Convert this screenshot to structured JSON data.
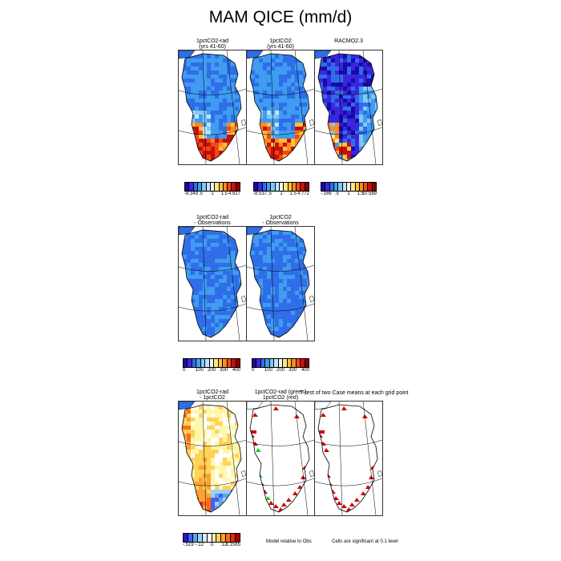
{
  "title": "MAM QICE (mm/d)",
  "rows": [
    {
      "panels": [
        {
          "title1": "1pctCO2-rad",
          "title2": "(yrs 41-60)"
        },
        {
          "title1": "1pctCO2",
          "title2": "(yrs 41-60)"
        },
        {
          "title1": "RACMO2.3",
          "title2": ""
        }
      ],
      "colorbars": [
        {
          "ticks": [
            "-8.349",
            ".5",
            "1",
            "1.5",
            "4.927"
          ]
        },
        {
          "ticks": [
            "-8.537",
            ".5",
            "1",
            "1.5",
            "4.772"
          ]
        },
        {
          "ticks": [
            "-.166",
            ".5",
            "1",
            "1.5",
            "10.589"
          ]
        }
      ]
    },
    {
      "panels": [
        {
          "title1": "1pctCO2-rad",
          "title2": "- Observations"
        },
        {
          "title1": "1pctCO2",
          "title2": "- Observations"
        }
      ],
      "colorbars": [
        {
          "ticks": [
            "0",
            "100",
            "200",
            "300",
            "400"
          ]
        },
        {
          "ticks": [
            "0",
            "100",
            "200",
            "300",
            "400"
          ]
        }
      ]
    },
    {
      "panels": [
        {
          "title1": "1pctCO2-rad",
          "title2": "- 1pctCO2"
        },
        {
          "title1": "1pctCO2-rad (green)",
          "title2": "1pctCO2 (red)"
        },
        {
          "title1": "",
          "title2": ""
        }
      ],
      "test_title": "T-test of two Case means at each grid point",
      "colorbars": [
        {
          "ticks": [
            "-.519",
            "-.12",
            ".0",
            ".12",
            "3.1565"
          ]
        }
      ],
      "notes": [
        "Model relative to Obs",
        "Cells are significant at 0.1 level"
      ]
    }
  ],
  "palettes": {
    "standard": [
      "#1a0aa8",
      "#3a26e0",
      "#2f6ee8",
      "#3f9cf0",
      "#7fc8f8",
      "#bfe4fa",
      "#f2f2f2",
      "#ffe680",
      "#ffc03a",
      "#ff8a1e",
      "#f04a14",
      "#c80e0e",
      "#8a0000"
    ],
    "difference": [
      "#3014c8",
      "#4460e8",
      "#5fa0f4",
      "#9ad0f8",
      "#d4ecfa",
      "#ffffff",
      "#fff7a8",
      "#ffd25a",
      "#ffa030",
      "#ff6a1a",
      "#e02a12",
      "#a80000"
    ]
  }
}
